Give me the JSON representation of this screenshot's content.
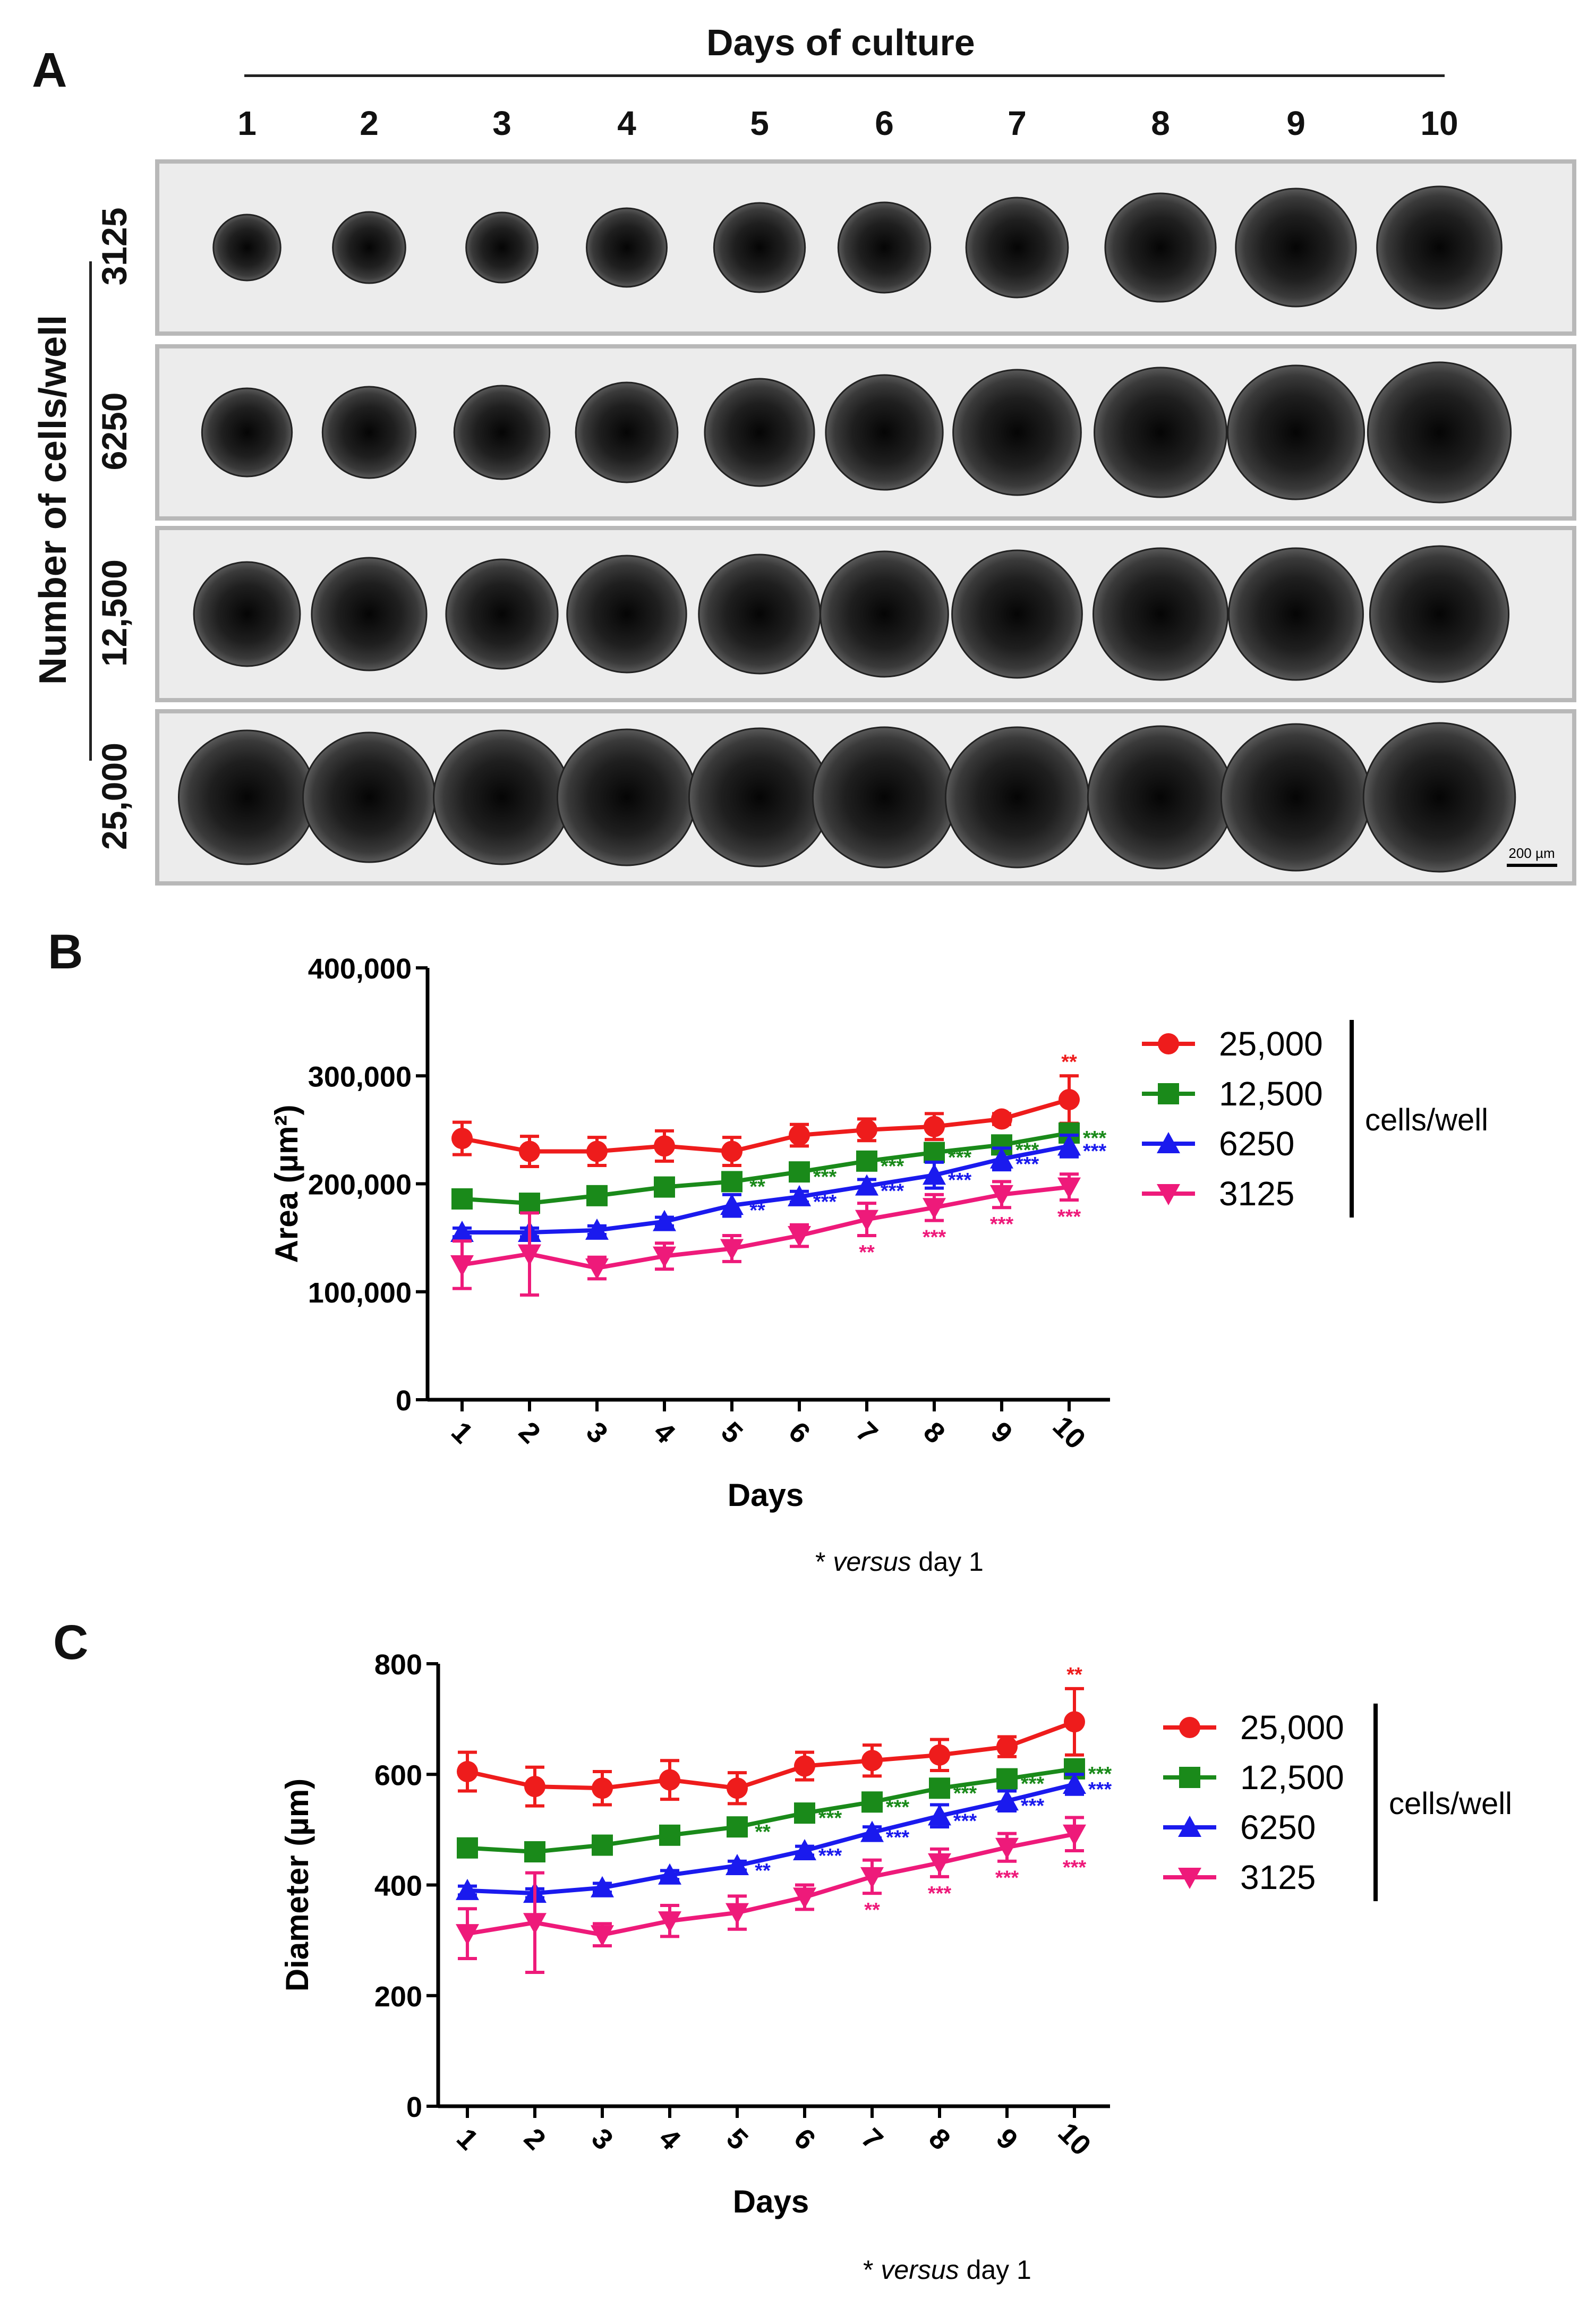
{
  "panel_a": {
    "letter": "A",
    "header": "Days of culture",
    "days": [
      "1",
      "2",
      "3",
      "4",
      "5",
      "6",
      "7",
      "8",
      "9",
      "10"
    ],
    "y_title": "Number of cells/well",
    "rows": [
      "3125",
      "6250",
      "12,500",
      "25,000"
    ],
    "scale_bar": "200 µm",
    "spheroid_diameters_um": [
      [
        310,
        335,
        330,
        370,
        420,
        425,
        470,
        510,
        555,
        575
      ],
      [
        415,
        430,
        440,
        470,
        505,
        540,
        590,
        610,
        630,
        660
      ],
      [
        490,
        530,
        515,
        550,
        560,
        590,
        600,
        620,
        620,
        640
      ],
      [
        630,
        610,
        630,
        640,
        650,
        660,
        660,
        670,
        690,
        700
      ]
    ]
  },
  "chart_data": [
    {
      "type": "line",
      "panel": "B",
      "title": "",
      "xlabel": "Days",
      "ylabel": "Area (µm²)",
      "ylim": [
        0,
        400000
      ],
      "yticks": [
        "0",
        "100,000",
        "200,000",
        "300,000",
        "400,000"
      ],
      "categories": [
        "1",
        "2",
        "3",
        "4",
        "5",
        "6",
        "7",
        "8",
        "9",
        "10"
      ],
      "legend_title": "cells/well",
      "legend_position": "right",
      "footnote": "* versus day 1",
      "series": [
        {
          "name": "25,000",
          "color": "#ee1c1c",
          "marker": "circle",
          "values": [
            242000,
            230000,
            230000,
            235000,
            230000,
            245000,
            250000,
            253000,
            260000,
            278000
          ],
          "errors": [
            15000,
            14000,
            13000,
            14000,
            13000,
            10000,
            10000,
            12000,
            5000,
            22000
          ],
          "sig": [
            "",
            "",
            "",
            "",
            "",
            "",
            "",
            "",
            "",
            "**"
          ]
        },
        {
          "name": "12,500",
          "color": "#1a8a1a",
          "marker": "square",
          "values": [
            186000,
            182000,
            189000,
            197000,
            202000,
            211000,
            221000,
            229000,
            236000,
            247000
          ],
          "errors": [
            3000,
            3000,
            3000,
            3000,
            4000,
            4000,
            5000,
            5000,
            5000,
            6000
          ],
          "sig": [
            "",
            "",
            "",
            "",
            "**",
            "***",
            "***",
            "***",
            "***",
            "***"
          ]
        },
        {
          "name": "6250",
          "color": "#1a1aee",
          "marker": "triangle-up",
          "values": [
            155000,
            155000,
            157000,
            165000,
            180000,
            188000,
            198000,
            208000,
            223000,
            235000
          ],
          "errors": [
            4000,
            4000,
            4000,
            4000,
            10000,
            5000,
            6000,
            12000,
            10000,
            10000
          ],
          "sig": [
            "",
            "",
            "",
            "",
            "**",
            "***",
            "***",
            "***",
            "***",
            "***"
          ]
        },
        {
          "name": "3125",
          "color": "#ee1a7a",
          "marker": "triangle-down",
          "values": [
            125000,
            135000,
            122000,
            133000,
            140000,
            152000,
            167000,
            178000,
            190000,
            197000
          ],
          "errors": [
            22000,
            38000,
            10000,
            12000,
            12000,
            10000,
            15000,
            12000,
            12000,
            12000
          ],
          "sig": [
            "",
            "",
            "",
            "",
            "",
            "",
            "**",
            "***",
            "***",
            "***"
          ]
        }
      ]
    },
    {
      "type": "line",
      "panel": "C",
      "title": "",
      "xlabel": "Days",
      "ylabel": "Diameter (µm)",
      "ylim": [
        0,
        800
      ],
      "yticks": [
        "0",
        "200",
        "400",
        "600",
        "800"
      ],
      "categories": [
        "1",
        "2",
        "3",
        "4",
        "5",
        "6",
        "7",
        "8",
        "9",
        "10"
      ],
      "legend_title": "cells/well",
      "legend_position": "right",
      "footnote": "* versus day 1",
      "series": [
        {
          "name": "25,000",
          "color": "#ee1c1c",
          "marker": "circle",
          "values": [
            605,
            578,
            575,
            590,
            575,
            615,
            625,
            635,
            650,
            695
          ],
          "errors": [
            35,
            35,
            30,
            35,
            28,
            25,
            28,
            28,
            18,
            60
          ],
          "sig": [
            "",
            "",
            "",
            "",
            "",
            "",
            "",
            "",
            "",
            "**"
          ]
        },
        {
          "name": "12,500",
          "color": "#1a8a1a",
          "marker": "square",
          "values": [
            467,
            460,
            472,
            490,
            505,
            530,
            550,
            575,
            592,
            610
          ],
          "errors": [
            8,
            8,
            8,
            8,
            8,
            10,
            10,
            10,
            10,
            10
          ],
          "sig": [
            "",
            "",
            "",
            "",
            "**",
            "***",
            "***",
            "***",
            "***",
            "***"
          ]
        },
        {
          "name": "6250",
          "color": "#1a1aee",
          "marker": "triangle-up",
          "values": [
            390,
            385,
            395,
            418,
            435,
            462,
            495,
            525,
            552,
            582
          ],
          "errors": [
            8,
            8,
            8,
            8,
            8,
            8,
            10,
            20,
            18,
            18
          ],
          "sig": [
            "",
            "",
            "",
            "",
            "**",
            "***",
            "***",
            "***",
            "***",
            "***"
          ]
        },
        {
          "name": "3125",
          "color": "#ee1a7a",
          "marker": "triangle-down",
          "values": [
            312,
            332,
            310,
            335,
            350,
            378,
            415,
            440,
            468,
            492
          ],
          "errors": [
            45,
            90,
            20,
            28,
            30,
            22,
            30,
            25,
            25,
            30
          ],
          "sig": [
            "",
            "",
            "",
            "",
            "",
            "",
            "**",
            "***",
            "***",
            "***"
          ]
        }
      ]
    }
  ]
}
